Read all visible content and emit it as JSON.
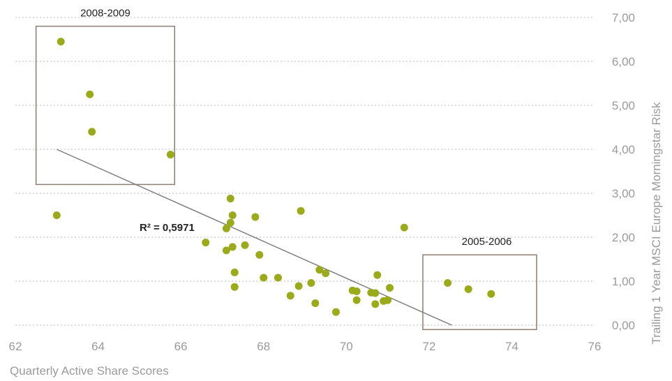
{
  "chart_data": {
    "type": "scatter",
    "xlabel": "Quarterly Active Share Scores",
    "ylabel": "Trailing 1 Year MSCI Europe Morningstar Risk",
    "xlim": [
      62,
      76
    ],
    "ylim": [
      0,
      7
    ],
    "x_ticks": [
      "62",
      "64",
      "66",
      "68",
      "70",
      "72",
      "74",
      "76"
    ],
    "y_ticks": [
      "0,00",
      "1,00",
      "2,00",
      "3,00",
      "4,00",
      "5,00",
      "6,00",
      "7,00"
    ],
    "grid": "horizontal-dotted",
    "y_axis_position": "right",
    "point_color": "#9aaa1c",
    "trendline": {
      "from": [
        63.0,
        4.0
      ],
      "to": [
        72.55,
        0.0
      ],
      "color": "#808080"
    },
    "r_squared_label": "R² = 0,5971",
    "annotations": [
      {
        "label": "2008-2009",
        "x_range": [
          62.5,
          65.85
        ],
        "y_range": [
          3.2,
          6.8
        ]
      },
      {
        "label": "2005-2006",
        "x_range": [
          71.85,
          74.6
        ],
        "y_range": [
          -0.1,
          1.6
        ]
      }
    ],
    "points": [
      {
        "x": 63.1,
        "y": 6.45
      },
      {
        "x": 63.8,
        "y": 5.25
      },
      {
        "x": 63.85,
        "y": 4.4
      },
      {
        "x": 65.75,
        "y": 3.88
      },
      {
        "x": 63.0,
        "y": 2.5
      },
      {
        "x": 66.6,
        "y": 1.88
      },
      {
        "x": 67.1,
        "y": 2.2
      },
      {
        "x": 67.2,
        "y": 2.88
      },
      {
        "x": 67.25,
        "y": 2.5
      },
      {
        "x": 67.2,
        "y": 2.33
      },
      {
        "x": 67.1,
        "y": 1.7
      },
      {
        "x": 67.25,
        "y": 1.78
      },
      {
        "x": 67.3,
        "y": 1.2
      },
      {
        "x": 67.3,
        "y": 0.87
      },
      {
        "x": 67.55,
        "y": 1.82
      },
      {
        "x": 67.8,
        "y": 2.46
      },
      {
        "x": 67.9,
        "y": 1.6
      },
      {
        "x": 68.0,
        "y": 1.08
      },
      {
        "x": 68.35,
        "y": 1.08
      },
      {
        "x": 68.65,
        "y": 0.67
      },
      {
        "x": 68.85,
        "y": 0.89
      },
      {
        "x": 68.9,
        "y": 2.6
      },
      {
        "x": 69.15,
        "y": 0.96
      },
      {
        "x": 69.25,
        "y": 0.5
      },
      {
        "x": 69.35,
        "y": 1.26
      },
      {
        "x": 69.5,
        "y": 1.18
      },
      {
        "x": 69.75,
        "y": 0.3
      },
      {
        "x": 70.15,
        "y": 0.79
      },
      {
        "x": 70.25,
        "y": 0.77
      },
      {
        "x": 70.25,
        "y": 0.57
      },
      {
        "x": 70.6,
        "y": 0.74
      },
      {
        "x": 70.7,
        "y": 0.73
      },
      {
        "x": 70.75,
        "y": 1.14
      },
      {
        "x": 70.7,
        "y": 0.48
      },
      {
        "x": 70.9,
        "y": 0.55
      },
      {
        "x": 71.0,
        "y": 0.57
      },
      {
        "x": 71.05,
        "y": 0.85
      },
      {
        "x": 71.4,
        "y": 2.22
      },
      {
        "x": 72.45,
        "y": 0.96
      },
      {
        "x": 72.95,
        "y": 0.82
      },
      {
        "x": 73.5,
        "y": 0.71
      }
    ]
  }
}
